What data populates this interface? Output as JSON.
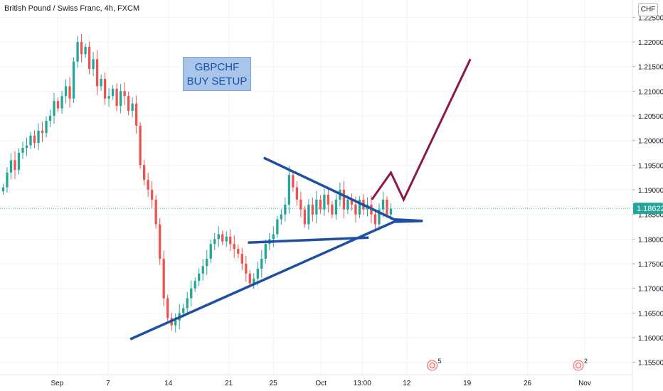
{
  "header": {
    "symbol_line": "British Pound / Swiss Franc, 4h, FXCM",
    "currency": "CHF"
  },
  "annotation": {
    "line1": "GBPCHF",
    "line2": "BUY SETUP"
  },
  "colors": {
    "up": "#26a69a",
    "down": "#ef5350",
    "pattern": "#1f4fa3",
    "projection": "#8b1a4a",
    "price_line": "#26a69a",
    "price_label_bg": "#26a69a"
  },
  "events": [
    {
      "label": "5",
      "icon": "calendar-event-icon",
      "x": 68
    },
    {
      "label": "2",
      "icon": "calendar-event-icon",
      "x": 91
    }
  ],
  "chart_data": {
    "type": "candlestick",
    "title": "British Pound / Swiss Franc, 4h, FXCM",
    "ylim": [
      1.1525,
      1.2285
    ],
    "y_ticks": [
      1.155,
      1.16,
      1.165,
      1.17,
      1.175,
      1.18,
      1.185,
      1.19,
      1.195,
      1.2,
      1.205,
      1.21,
      1.215,
      1.22,
      1.225
    ],
    "x_tick_labels": [
      {
        "label": "Sep",
        "x": 9
      },
      {
        "label": "7",
        "x": 17
      },
      {
        "label": "14",
        "x": 26.5
      },
      {
        "label": "21",
        "x": 36
      },
      {
        "label": "25",
        "x": 43
      },
      {
        "label": "Oct",
        "x": 50.5
      },
      {
        "label": "13:00",
        "x": 57
      },
      {
        "label": "12",
        "x": 64
      },
      {
        "label": "19",
        "x": 73.5
      },
      {
        "label": "26",
        "x": 83
      },
      {
        "label": "Nov",
        "x": 92
      }
    ],
    "xlim": [
      0,
      99.5
    ],
    "last_price": "1.18622",
    "last_price_value": 1.18622,
    "closes": [
      1.1905,
      1.1935,
      1.196,
      1.194,
      1.1975,
      1.1985,
      1.199,
      1.201,
      1.1995,
      1.202,
      1.2015,
      1.204,
      1.205,
      1.208,
      1.2065,
      1.209,
      1.211,
      1.2085,
      1.216,
      1.22,
      1.2175,
      1.219,
      1.2145,
      1.2165,
      1.211,
      1.2125,
      1.2085,
      1.209,
      1.2105,
      1.207,
      1.21,
      1.209,
      1.206,
      1.2075,
      1.203,
      1.195,
      1.192,
      1.19,
      1.188,
      1.183,
      1.176,
      1.168,
      1.164,
      1.1625,
      1.1635,
      1.165,
      1.166,
      1.168,
      1.17,
      1.1715,
      1.173,
      1.1745,
      1.176,
      1.179,
      1.18,
      1.181,
      1.1795,
      1.1805,
      1.179,
      1.178,
      1.177,
      1.175,
      1.173,
      1.171,
      1.172,
      1.174,
      1.176,
      1.179,
      1.18,
      1.181,
      1.184,
      1.185,
      1.187,
      1.193,
      1.1905,
      1.188,
      1.186,
      1.183,
      1.187,
      1.185,
      1.188,
      1.186,
      1.189,
      1.187,
      1.185,
      1.188,
      1.19,
      1.186,
      1.188,
      1.187,
      1.185,
      1.188,
      1.186,
      1.187,
      1.185,
      1.183,
      1.186,
      1.188,
      1.185,
      1.1862
    ],
    "drawings": {
      "resistance": [
        [
          41.5,
          1.1965
        ],
        [
          62,
          1.184
        ]
      ],
      "support_upper": [
        [
          39,
          1.1793
        ],
        [
          58,
          1.1803
        ]
      ],
      "support_lower": [
        [
          20.5,
          1.1597
        ],
        [
          62,
          1.1835
        ]
      ],
      "projection": [
        [
          58.5,
          1.188
        ],
        [
          61.5,
          1.1935
        ],
        [
          63.5,
          1.188
        ],
        [
          74,
          1.2165
        ]
      ]
    }
  }
}
